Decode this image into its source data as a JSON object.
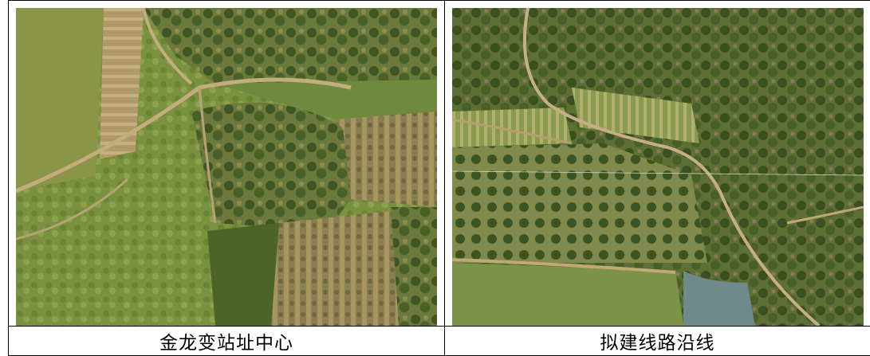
{
  "figures": [
    {
      "caption": "金龙变站址中心",
      "image": "aerial-photo-substation-site"
    },
    {
      "caption": "拟建线路沿线",
      "image": "aerial-photo-line-route"
    }
  ]
}
